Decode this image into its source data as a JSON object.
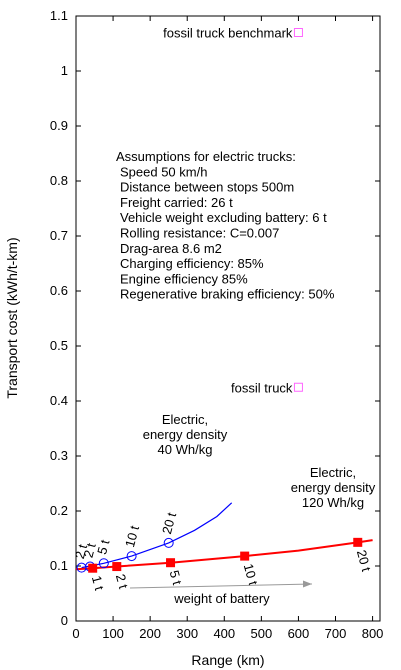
{
  "chart_data": {
    "type": "scatter",
    "xlabel": "Range (km)",
    "ylabel": "Transport cost (kWh/t-km)",
    "xlim": [
      0,
      820
    ],
    "ylim": [
      0,
      1.1
    ],
    "x_ticks": [
      0,
      100,
      200,
      300,
      400,
      500,
      600,
      700,
      800
    ],
    "y_ticks": [
      0,
      0.1,
      0.2,
      0.3,
      0.4,
      0.5,
      0.6,
      0.7,
      0.8,
      0.9,
      1,
      1.1
    ],
    "grid": false,
    "colors": {
      "e40": "#0000ff",
      "e120": "#ff0000",
      "fossil": "#ff66ff",
      "arrow": "#999999"
    },
    "series": [
      {
        "name": "fossil truck benchmark",
        "marker": "open-square",
        "points": [
          {
            "x": 600,
            "y": 1.07
          }
        ]
      },
      {
        "name": "fossil truck",
        "marker": "open-square",
        "points": [
          {
            "x": 600,
            "y": 0.425
          }
        ]
      },
      {
        "name": "Electric, energy density 40 Wh/kg",
        "marker": "open-circle",
        "points": [
          {
            "x": 15,
            "y": 0.097,
            "label": "2 t"
          },
          {
            "x": 38,
            "y": 0.099,
            "label": "2 t"
          },
          {
            "x": 75,
            "y": 0.105,
            "label": "5 t"
          },
          {
            "x": 150,
            "y": 0.118,
            "label": "10 t"
          },
          {
            "x": 250,
            "y": 0.142,
            "label": "20 t"
          }
        ],
        "curve": [
          {
            "x": 15,
            "y": 0.097
          },
          {
            "x": 75,
            "y": 0.105
          },
          {
            "x": 150,
            "y": 0.118
          },
          {
            "x": 250,
            "y": 0.142
          },
          {
            "x": 320,
            "y": 0.165
          },
          {
            "x": 380,
            "y": 0.19
          },
          {
            "x": 420,
            "y": 0.215
          }
        ]
      },
      {
        "name": "Electric, energy density 120 Wh/kg",
        "marker": "filled-square",
        "points": [
          {
            "x": 45,
            "y": 0.096,
            "label": "1 t"
          },
          {
            "x": 110,
            "y": 0.099,
            "label": "2 t"
          },
          {
            "x": 255,
            "y": 0.106,
            "label": "5 t"
          },
          {
            "x": 455,
            "y": 0.118,
            "label": "10 t"
          },
          {
            "x": 760,
            "y": 0.143,
            "label": "20 t"
          }
        ],
        "curve": [
          {
            "x": 0,
            "y": 0.094
          },
          {
            "x": 45,
            "y": 0.096
          },
          {
            "x": 110,
            "y": 0.099
          },
          {
            "x": 255,
            "y": 0.106
          },
          {
            "x": 455,
            "y": 0.118
          },
          {
            "x": 600,
            "y": 0.128
          },
          {
            "x": 760,
            "y": 0.143
          },
          {
            "x": 800,
            "y": 0.147
          }
        ]
      }
    ],
    "annotations": {
      "fossil_benchmark": "fossil truck benchmark",
      "fossil": "fossil truck",
      "e40": [
        "Electric,",
        "energy density",
        "40 Wh/kg"
      ],
      "e120": [
        "Electric,",
        "energy density",
        "120 Wh/kg"
      ],
      "assumptions": [
        "Assumptions for electric trucks:",
        "Speed 50 km/h",
        "Distance between stops 500m",
        "Freight carried: 26 t",
        "Vehicle weight excluding battery: 6 t",
        "Rolling resistance: C=0.007",
        "Drag-area 8.6 m2",
        "Charging efficiency: 85%",
        "Engine efficiency 85%",
        "Regenerative braking efficiency: 50%"
      ],
      "weight_arrow": "weight of battery"
    }
  }
}
